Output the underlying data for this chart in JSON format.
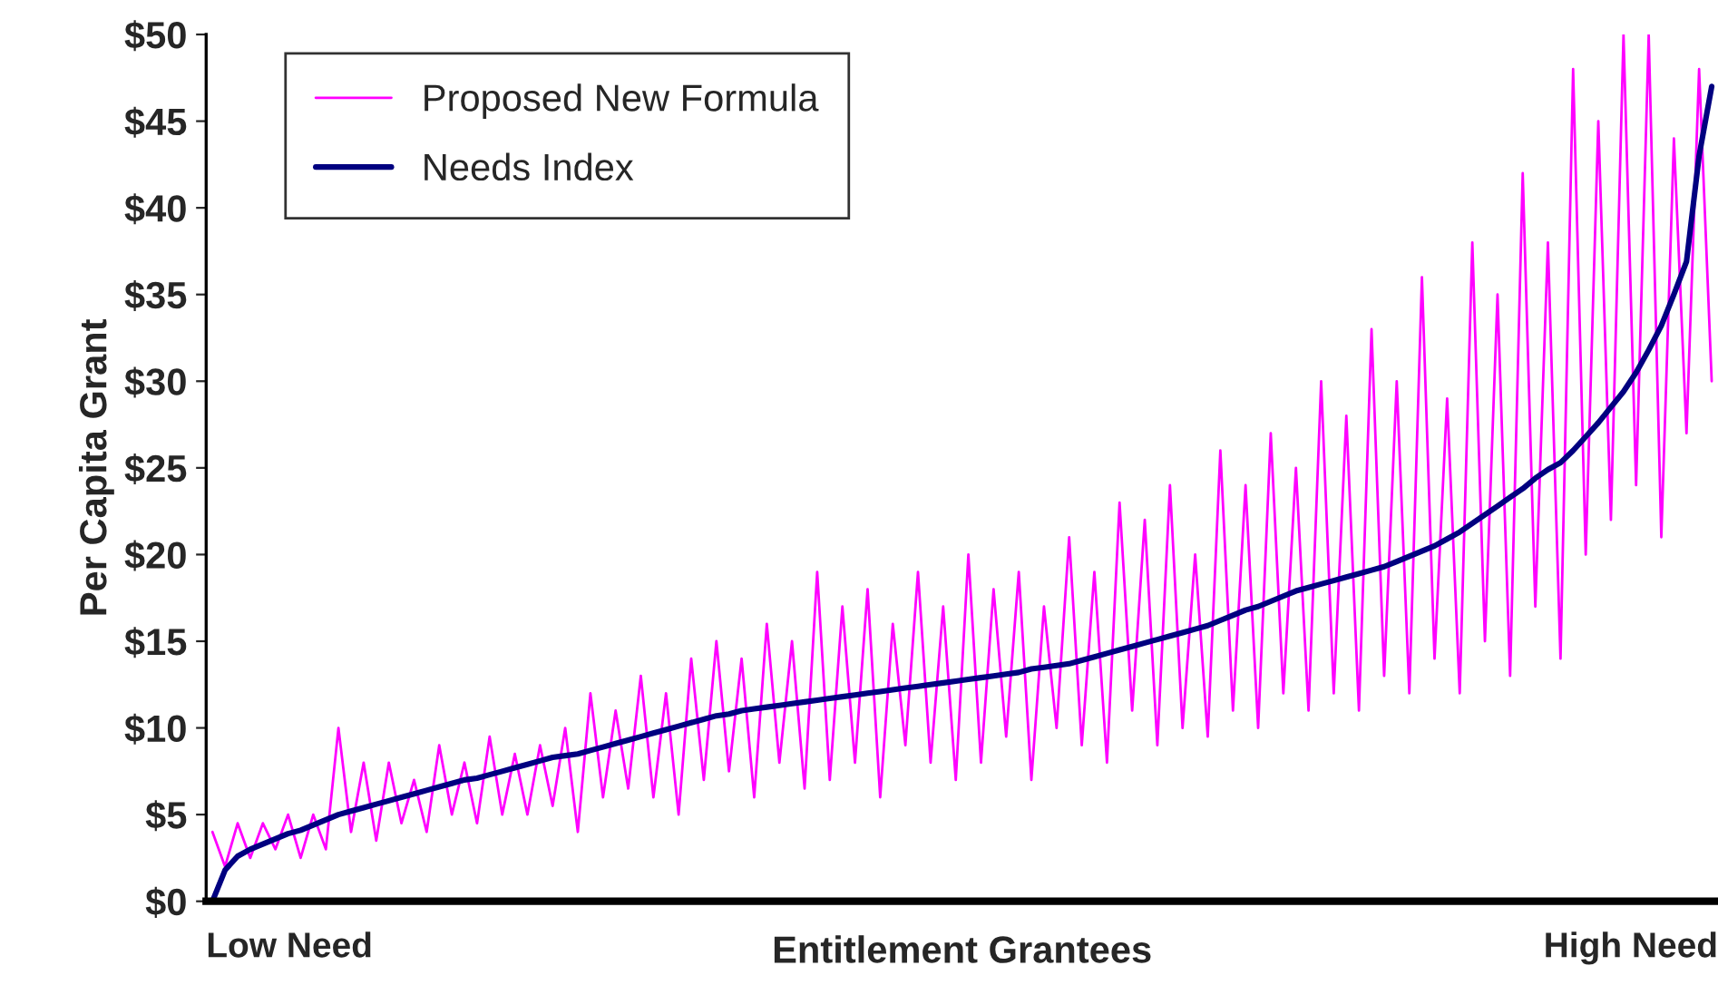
{
  "chart_data": {
    "type": "line",
    "xlabel": "Entitlement Grantees",
    "ylabel": "Per Capita Grant",
    "annotations": [
      "Low Need",
      "High Need"
    ],
    "categories": [
      null,
      null,
      null,
      null,
      null,
      null,
      null,
      null,
      null,
      null,
      null,
      null,
      null,
      null,
      null,
      null,
      null,
      null,
      null,
      null,
      null,
      null,
      null,
      null,
      null,
      null,
      null,
      null,
      null,
      null,
      null,
      null,
      null,
      null,
      null,
      null,
      null,
      null,
      null,
      null,
      null,
      null,
      null,
      null,
      null,
      null,
      null,
      null,
      null,
      null,
      null,
      null,
      null,
      null,
      null,
      null,
      null,
      null,
      null,
      null,
      null,
      null,
      null,
      null,
      null,
      null,
      null,
      null,
      null,
      null,
      null,
      null,
      null,
      null,
      null,
      null,
      null,
      null,
      null,
      null,
      null,
      null,
      null,
      null,
      null,
      null,
      null,
      null,
      null,
      null,
      null,
      null,
      null,
      null,
      null,
      null,
      null,
      null,
      null,
      null,
      null,
      null,
      null,
      null,
      null,
      null,
      null,
      null,
      null,
      null,
      null,
      null,
      null,
      null,
      null,
      null,
      null,
      null,
      null,
      null
    ],
    "series": [
      {
        "name": "Proposed New Formula",
        "color": "#ff00ff",
        "values": [
          4,
          2,
          4.5,
          2.5,
          4.5,
          3,
          5,
          2.5,
          5,
          3,
          10,
          4,
          8,
          3.5,
          8,
          4.5,
          7,
          4,
          9,
          5,
          8,
          4.5,
          9.5,
          5,
          8.5,
          5,
          9,
          5.5,
          10,
          4,
          12,
          6,
          11,
          6.5,
          13,
          6,
          12,
          5,
          14,
          7,
          15,
          7.5,
          14,
          6,
          16,
          8,
          15,
          6.5,
          19,
          7,
          17,
          8,
          18,
          6,
          16,
          9,
          19,
          8,
          17,
          7,
          20,
          8,
          18,
          9.5,
          19,
          7,
          17,
          10,
          21,
          9,
          19,
          8,
          23,
          11,
          22,
          9,
          24,
          10,
          20,
          9.5,
          26,
          11,
          24,
          10,
          27,
          12,
          25,
          11,
          30,
          12,
          28,
          11,
          33,
          13,
          30,
          12,
          36,
          14,
          29,
          12,
          38,
          15,
          35,
          13,
          42,
          17,
          38,
          14,
          48,
          20,
          45,
          22,
          50,
          24,
          50,
          21,
          44,
          27,
          48,
          30
        ]
      },
      {
        "name": "Needs Index",
        "color": "#000080",
        "values": [
          0,
          1.8,
          2.6,
          3.0,
          3.3,
          3.6,
          3.9,
          4.1,
          4.4,
          4.7,
          5.0,
          5.2,
          5.4,
          5.6,
          5.8,
          6.0,
          6.2,
          6.4,
          6.6,
          6.8,
          7.0,
          7.1,
          7.3,
          7.5,
          7.7,
          7.9,
          8.1,
          8.3,
          8.4,
          8.5,
          8.7,
          8.9,
          9.1,
          9.3,
          9.5,
          9.7,
          9.9,
          10.1,
          10.3,
          10.5,
          10.7,
          10.8,
          11.0,
          11.1,
          11.2,
          11.3,
          11.4,
          11.5,
          11.6,
          11.7,
          11.8,
          11.9,
          12.0,
          12.1,
          12.2,
          12.3,
          12.4,
          12.5,
          12.6,
          12.7,
          12.8,
          12.9,
          13.0,
          13.1,
          13.2,
          13.4,
          13.5,
          13.6,
          13.7,
          13.9,
          14.1,
          14.3,
          14.5,
          14.7,
          14.9,
          15.1,
          15.3,
          15.5,
          15.7,
          15.9,
          16.2,
          16.5,
          16.8,
          17.0,
          17.3,
          17.6,
          17.9,
          18.1,
          18.3,
          18.5,
          18.7,
          18.9,
          19.1,
          19.3,
          19.6,
          19.9,
          20.2,
          20.5,
          20.9,
          21.3,
          21.8,
          22.3,
          22.8,
          23.3,
          23.8,
          24.4,
          24.9,
          25.3,
          26.0,
          26.8,
          27.6,
          28.5,
          29.4,
          30.5,
          31.8,
          33.2,
          35.0,
          36.9,
          43.0,
          47.0
        ]
      }
    ],
    "ylim": [
      0,
      50
    ],
    "yticks": [
      {
        "value": 0,
        "label": "$0"
      },
      {
        "value": 5,
        "label": "$5"
      },
      {
        "value": 10,
        "label": "$10"
      },
      {
        "value": 15,
        "label": "$15"
      },
      {
        "value": 20,
        "label": "$20"
      },
      {
        "value": 25,
        "label": "$25"
      },
      {
        "value": 30,
        "label": "$30"
      },
      {
        "value": 35,
        "label": "$35"
      },
      {
        "value": 40,
        "label": "$40"
      },
      {
        "value": 45,
        "label": "$45"
      },
      {
        "value": 50,
        "label": "$50"
      }
    ],
    "legend": "top left",
    "grid": false
  }
}
